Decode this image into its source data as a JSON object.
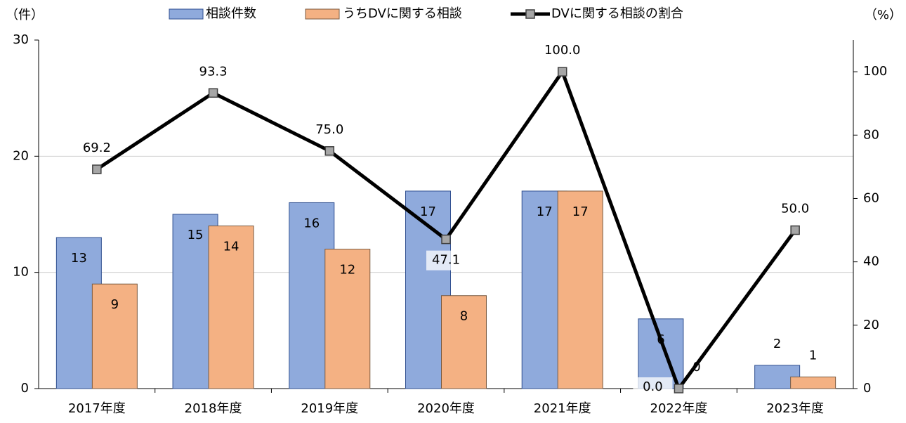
{
  "chart_data": {
    "type": "bar",
    "y_axis_label": "（件）",
    "y2_axis_label": "（%）",
    "categories": [
      "2017年度",
      "2018年度",
      "2019年度",
      "2020年度",
      "2021年度",
      "2022年度",
      "2023年度"
    ],
    "series": [
      {
        "name": "相談件数",
        "color": "#8faadc",
        "values": [
          13,
          15,
          16,
          17,
          17,
          6,
          2
        ]
      },
      {
        "name": "うちDVに関する相談",
        "color": "#f4b183",
        "values": [
          9,
          14,
          12,
          8,
          17,
          0,
          1
        ]
      },
      {
        "name": "DVに関する相談の割合",
        "type": "line",
        "axis": "y2",
        "color": "#000000",
        "marker_color": "#a6a6a6",
        "values": [
          69.2,
          93.3,
          75.0,
          47.1,
          100.0,
          0.0,
          50.0
        ],
        "value_labels": [
          "69.2",
          "93.3",
          "75.0",
          "47.1",
          "100.0",
          "0.0",
          "50.0"
        ]
      }
    ],
    "ylim": [
      0,
      30
    ],
    "yticks": [
      0,
      10,
      20,
      30
    ],
    "y2lim": [
      0,
      110
    ],
    "y2ticks": [
      0,
      20,
      40,
      60,
      80,
      100
    ],
    "grid": true,
    "legend": "top"
  }
}
